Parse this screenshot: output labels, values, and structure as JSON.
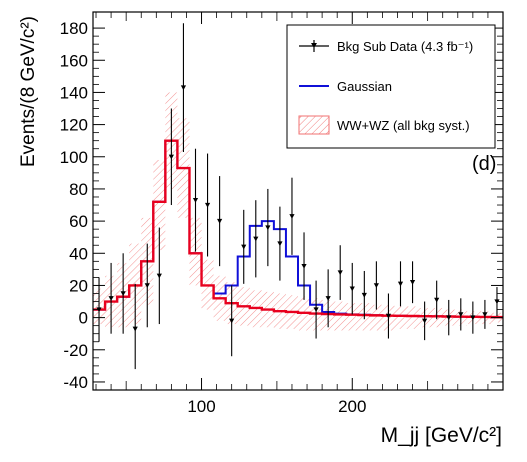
{
  "chart_data": {
    "type": "histogram",
    "ylabel": "Events/(8 GeV/c²)",
    "xlabel": "M_jj [GeV/c²]",
    "xlim": [
      28,
      300
    ],
    "ylim": [
      -45,
      190
    ],
    "xticks": [
      100,
      200
    ],
    "xtick_labels": [
      "100",
      "200"
    ],
    "yticks": [
      -40,
      -20,
      0,
      20,
      40,
      60,
      80,
      100,
      120,
      140,
      160,
      180
    ],
    "ytick_labels": [
      "-40",
      "-20",
      "0",
      "20",
      "40",
      "60",
      "80",
      "100",
      "120",
      "140",
      "160",
      "180"
    ],
    "panel_label": "(d)",
    "legend": {
      "position": "top-right",
      "entries": [
        {
          "key": "data",
          "label": "Bkg Sub Data (4.3 fb⁻¹)"
        },
        {
          "key": "gauss",
          "label": "Gaussian"
        },
        {
          "key": "syst",
          "label": "WW+WZ (all bkg syst.)"
        }
      ]
    },
    "bin_edges": [
      28,
      36,
      44,
      52,
      60,
      68,
      76,
      84,
      92,
      100,
      108,
      116,
      124,
      132,
      140,
      148,
      156,
      164,
      172,
      180,
      188,
      196,
      204,
      212,
      220,
      228,
      236,
      244,
      252,
      260,
      268,
      276,
      284,
      292,
      300
    ],
    "ww_wz": [
      5,
      10,
      13,
      20,
      35,
      72,
      110,
      93,
      40,
      20,
      12,
      9,
      7,
      6,
      5,
      4,
      3.5,
      3,
      2.5,
      2.2,
      2,
      1.8,
      1.6,
      1.4,
      1.2,
      1.1,
      1,
      0.9,
      0.8,
      0.7,
      0.6,
      0.5,
      0.4,
      0.3
    ],
    "gaussian_total": [
      5,
      10,
      13,
      20,
      35,
      72,
      110,
      93,
      40,
      20,
      15,
      20,
      38,
      57,
      60,
      55,
      38,
      20,
      8,
      3.5,
      2.5,
      2,
      1.8,
      1.5,
      1.3,
      1.1,
      1,
      0.9,
      0.8,
      0.7,
      0.6,
      0.5,
      0.4,
      0.3
    ],
    "syst_band": [
      [
        -4,
        18
      ],
      [
        -6,
        26
      ],
      [
        -6,
        34
      ],
      [
        -4,
        46
      ],
      [
        8,
        62
      ],
      [
        42,
        98
      ],
      [
        80,
        140
      ],
      [
        62,
        124
      ],
      [
        20,
        62
      ],
      [
        5,
        36
      ],
      [
        -2,
        26
      ],
      [
        -4,
        22
      ],
      [
        -5,
        19
      ],
      [
        -6,
        17
      ],
      [
        -6,
        16
      ],
      [
        -7,
        15
      ],
      [
        -7,
        14
      ],
      [
        -8,
        13
      ],
      [
        -8,
        12
      ],
      [
        -8,
        11
      ],
      [
        -8,
        10
      ],
      [
        -8,
        9
      ],
      [
        -8,
        9
      ],
      [
        -8,
        8
      ],
      [
        -8,
        8
      ],
      [
        -7,
        7
      ],
      [
        -7,
        7
      ],
      [
        -6,
        6
      ],
      [
        -6,
        6
      ],
      [
        -5,
        5
      ],
      [
        -5,
        5
      ],
      [
        -4,
        4
      ],
      [
        -4,
        4
      ],
      [
        -3,
        3
      ]
    ],
    "data_points": [
      {
        "x": 32,
        "y": 5,
        "err_low": 20,
        "err_high": 20
      },
      {
        "x": 40,
        "y": 12,
        "err_low": 22,
        "err_high": 22
      },
      {
        "x": 48,
        "y": 15,
        "err_low": 25,
        "err_high": 25
      },
      {
        "x": 56,
        "y": -7,
        "err_low": 25,
        "err_high": 28
      },
      {
        "x": 64,
        "y": 20,
        "err_low": 26,
        "err_high": 26
      },
      {
        "x": 72,
        "y": 26,
        "err_low": 30,
        "err_high": 30
      },
      {
        "x": 80,
        "y": 100,
        "err_low": 30,
        "err_high": 30
      },
      {
        "x": 88,
        "y": 143,
        "err_low": 40,
        "err_high": 40
      },
      {
        "x": 96,
        "y": 73,
        "err_low": 32,
        "err_high": 32
      },
      {
        "x": 104,
        "y": 70,
        "err_low": 32,
        "err_high": 32
      },
      {
        "x": 112,
        "y": 60,
        "err_low": 28,
        "err_high": 28
      },
      {
        "x": 120,
        "y": -2,
        "err_low": 22,
        "err_high": 22
      },
      {
        "x": 128,
        "y": 44,
        "err_low": 23,
        "err_high": 23
      },
      {
        "x": 136,
        "y": 49,
        "err_low": 24,
        "err_high": 24
      },
      {
        "x": 144,
        "y": 56,
        "err_low": 24,
        "err_high": 24
      },
      {
        "x": 152,
        "y": 46,
        "err_low": 23,
        "err_high": 23
      },
      {
        "x": 160,
        "y": 63,
        "err_low": 24,
        "err_high": 24
      },
      {
        "x": 168,
        "y": 32,
        "err_low": 21,
        "err_high": 21
      },
      {
        "x": 176,
        "y": 5,
        "err_low": 18,
        "err_high": 18
      },
      {
        "x": 184,
        "y": 12,
        "err_low": 18,
        "err_high": 18
      },
      {
        "x": 192,
        "y": 28,
        "err_low": 17,
        "err_high": 17
      },
      {
        "x": 200,
        "y": 18,
        "err_low": 16,
        "err_high": 16
      },
      {
        "x": 208,
        "y": 14,
        "err_low": 15,
        "err_high": 15
      },
      {
        "x": 216,
        "y": 20,
        "err_low": 15,
        "err_high": 15
      },
      {
        "x": 224,
        "y": 1,
        "err_low": 14,
        "err_high": 14
      },
      {
        "x": 232,
        "y": 21,
        "err_low": 14,
        "err_high": 14
      },
      {
        "x": 240,
        "y": 22,
        "err_low": 13,
        "err_high": 13
      },
      {
        "x": 248,
        "y": -2,
        "err_low": 12,
        "err_high": 12
      },
      {
        "x": 256,
        "y": 11,
        "err_low": 12,
        "err_high": 12
      },
      {
        "x": 264,
        "y": 0,
        "err_low": 11,
        "err_high": 11
      },
      {
        "x": 272,
        "y": 2,
        "err_low": 10,
        "err_high": 10
      },
      {
        "x": 280,
        "y": 0,
        "err_low": 10,
        "err_high": 10
      },
      {
        "x": 288,
        "y": 2,
        "err_low": 9,
        "err_high": 9
      },
      {
        "x": 296,
        "y": 10,
        "err_low": 9,
        "err_high": 9
      }
    ],
    "colors": {
      "ww_wz": "#e8001e",
      "gaussian": "#1010d8",
      "band": "#f07070",
      "data": "#000000"
    }
  }
}
